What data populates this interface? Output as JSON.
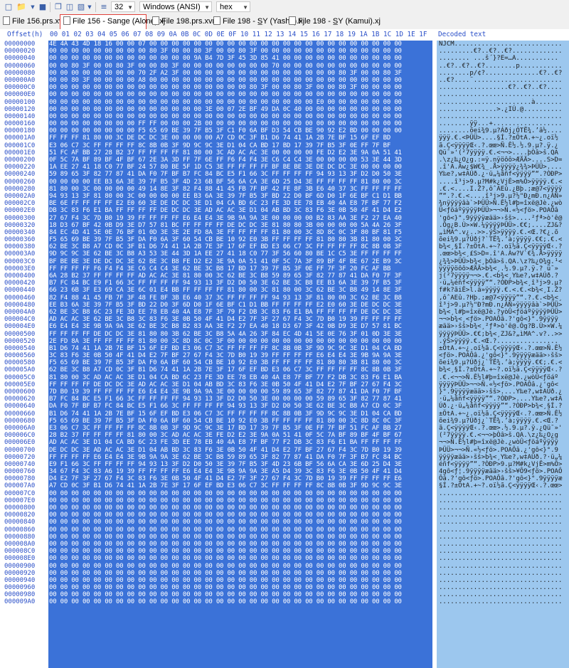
{
  "toolbar": {
    "zoom_value": "32",
    "encoding_value": "Windows (ANSI)",
    "view_value": "hex"
  },
  "tabs": [
    {
      "label": "File 156.prs.xvm",
      "active": false
    },
    {
      "label": "File 156 - Sange (Alone).xj",
      "active": true
    },
    {
      "label": "File 198.prs.xvm",
      "active": false
    },
    {
      "label": "File 198 - S̲Y (Yasha).xj",
      "active": false
    },
    {
      "label": "File 198 - S̲Y (Kamui).xj",
      "active": false
    }
  ],
  "header": {
    "offset_label": "Offset(h)",
    "columns": [
      "00",
      "01",
      "02",
      "03",
      "04",
      "05",
      "06",
      "07",
      "08",
      "09",
      "0A",
      "0B",
      "0C",
      "0D",
      "0E",
      "0F",
      "10",
      "11",
      "12",
      "13",
      "14",
      "15",
      "16",
      "17",
      "18",
      "19",
      "1A",
      "1B",
      "1C",
      "1D",
      "1E",
      "1F"
    ],
    "decoded_label": "Decoded text"
  },
  "rows": [
    {
      "offset": "00000000",
      "hex": "4E 4A 43 4D 18 16 00 00 07 00 00 00 00 00 00 00 00 00 00 00 00 00 00 00 00 00 00 00 00 00 00 00",
      "text": "NJCM............................"
    },
    {
      "offset": "00000020",
      "hex": "00 00 00 00 00 00 00 00 00 80 3F 00 00 80 3F 00 00 80 3F 00 00 00 00 00 00 00 00 00 00 00 00 00",
      "text": ".........€?..€?..€?............."
    },
    {
      "offset": "00000040",
      "hex": "00 00 00 00 00 00 00 00 00 00 00 00 00 9A B4 7D 3F 45 3D 85 41 00 00 00 00 00 00 00 00 00 00 00",
      "text": "........ ...š´}?E=…A..........."
    },
    {
      "offset": "00000060",
      "hom": "",
      "hex": "00 00 80 3F 00 00 80 3F 00 00 80 3F 00 00 00 00 00 00 00 00 70 00 00 00 00 00 00 00 00 00 00 00",
      "text": "..€?..€?..€?........p..........."
    },
    {
      "offset": "00000080",
      "hex": "00 00 00 00 00 00 00 00 70 2F A2 3F 00 00 00 00 00 00 00 00 00 00 00 00 00 00 80 3F 00 00 80 3F",
      "text": "........p/¢?..............€?..€?"
    },
    {
      "offset": "000000A0",
      "hex": "00 00 80 3F 00 00 00 00 A8 00 00 00 00 00 00 00 00 00 00 00 00 00 00 00 00 00 00 00 00 00 00 00",
      "text": "..€?....¨......................."
    },
    {
      "offset": "000000C0",
      "hex": "00 00 00 00 00 00 00 00 00 00 00 00 00 00 00 00 00 00 80 3F 00 00 80 3F 00 00 80 3F 00 00 00 00",
      "text": "..................€?..€?..€?...."
    },
    {
      "offset": "000000E0",
      "hex": "00 00 00 00 00 00 00 00 00 00 00 00 00 00 00 00 00 00 00 00 00 00 00 00 00 00 00 00 00 00 00 00",
      "text": "................................"
    },
    {
      "offset": "00000100",
      "hex": "00 00 00 00 00 00 00 00 00 00 00 00 00 00 00 00 00 00 00 00 00 00 00 00 E0 00 00 00 00 00 00 00",
      "text": "........................à......."
    },
    {
      "offset": "00000120",
      "hex": "00 00 00 00 00 00 00 00 00 00 00 00 00 00 3E 00 07 2E BF 49 DA 0C 40 00 00 00 00 00 00 00 00 00",
      "text": "...............>.¿IÚ.@.........."
    },
    {
      "offset": "00000140",
      "hex": "00 00 00 00 00 00 00 00 00 00 00 00 00 00 00 00 00 00 00 00 00 00 00 00 00 00 00 00 00 00 00 00",
      "text": "................................"
    },
    {
      "offset": "00000160",
      "hex": "00 00 00 00 00 00 00 00 FF FF 00 00 00 2B 00 00 00 00 00 00 00 00 00 00 00 00 00 00 00 00 00 00",
      "text": "........ÿÿ...+.................."
    },
    {
      "offset": "00000180",
      "hex": "00 00 00 00 00 00 00 00 F5 65 69 BE 39 7F B5 3F C1 F0 6A BF D3 54 CB BE 90 92 E2 BD 00 00 00 00",
      "text": "........õei¾9.µ?Áðj¿ÓTË¾.’â½...."
    },
    {
      "offset": "000001A0",
      "hex": "FF FF FF 81 80 00 3C DE DC DC 3E 00 00 00 00 A7 CD 0C 3F B1 D6 74 41 1A 2B 7E BF 15 6F EF BD",
      "text": "ÿÿÿ.€.<ÞÜÜ>....§Í.?±ÖtA.+~¿.oï½"
    },
    {
      "offset": "000001C0",
      "hex": "E3 06 C7 3C FF FF FF FF 8C 8B 0B 3F 9D 9C 9C 3E D1 04 CA BD 17 BD 17 39 7F B5 3F 0E FF 7F BF",
      "text": "ã.Ç<ÿÿÿÿŒ‹.?.œœ>Ñ.Ê½.½.9.µ?.ÿ.¿"
    },
    {
      "offset": "000001E0",
      "hex": "51 FC AF BB 27 28 B2 37 FF FF FF FF 81 80 00 3C AD AC AC 3E 00 00 00 00 FE D2 E2 3E 9A 0A 51 41",
      "text": "Qü¯»'(²7ÿÿÿÿ.€.<­¬¬>....þÒâ>š.QA"
    },
    {
      "offset": "00000200",
      "hex": "0F 5C 7A BF 89 BF 4F BF 67 2E 3A 3D FF 7F 6E FF F6 F4 F4 3E C6 C4 C4 3E 00 00 00 00 53 3E 44 3D",
      "text": ".\\z¿‰¿O¿g.:=ÿ.nÿöôô>ÆÄÄ>....S>D="
    },
    {
      "offset": "00000220",
      "hex": "1A EE 27 41 18 C0 77 BF 24 57 80 BE 5F 1D C5 3E FF FF FF FF BF BE BE 3E DE DC DC 3E 00 00 00 00",
      "text": ".î'A.Àw¿$W€¾_.Å>ÿÿÿÿ¿¾¾>ÞÜÜ>...."
    },
    {
      "offset": "00000240",
      "hex": "59 89 65 3F 82 77 87 41 DA F0 7F BF B7 FC 84 BC E5 F1 66 3C FF FF FF FF 94 93 13 3F D2 D0 50 3E",
      "text": "Y‰e?‚w‡AÚð.¿·ü„¼åñf<ÿÿÿÿ”“.?ÒÐP>"
    },
    {
      "offset": "00000260",
      "hex": "00 00 00 00 EE B3 6A 3E 39 7F B5 3F 4D 23 6B BF 56 6A CA 3E 6D 25 D4 3E FF FF FF FF 81 80 00 3C",
      "text": "....î³j>9.µ?M#k¿VjÊ>m%Ô>ÿÿÿÿ.€.<"
    },
    {
      "offset": "00000280",
      "hex": "81 80 00 3C 00 00 00 00 49 14 8E 3F 82 F4 88 41 45 FB 7F BF 42 FE 8F 3B E6 40 37 3C FF FF FF FF",
      "text": ".€.<....I.Ž?‚ôˆAEû.¿Bþ.;æ@7<ÿÿÿÿ"
    },
    {
      "offset": "000002A0",
      "hex": "94 93 13 3F 81 80 00 3C 00 00 00 00 EE B3 6A 3E 39 7F B5 3F BD 22 D0 BF 6D D0 1F 6E BF C1 D1 BB",
      "text": "”“.?.€.<....î³j>9.µ?½\"Ð¿mÐ.n¿ÁÑ»"
    },
    {
      "offset": "000002C0",
      "hex": "BE 6E FF FF FF FF E2 E0 60 3E DE DC DC 3E D1 04 CA BD 6C 23 FE 3D EE 78 EB 40 4A E8 7F BF 77 F2",
      "text": "¾nÿÿÿÿâà`>ÞÜÜ>Ñ.Ê½l#þ=îxë@Jè.¿wò"
    },
    {
      "offset": "000002E0",
      "hex": "DB 3C 83 F6 E1 BA FF FF FF FF DE DC DC 3E AD AC AC 3E D1 04 AB BD 3C 83 F6 3E 0B 50 4F 41 D4 E2",
      "text": "Û<ƒöáºÿÿÿÿÞÜÜ>­¬¬>Ñ.«½<ƒö>.POAÔâ"
    },
    {
      "offset": "00000300",
      "hex": "27 67 F4 3C 7D B0 19 39 FF FF FF FF E6 E4 E4 3E 9B 9A 9A 3E 00 00 00 00 B2 83 AA 3E F2 27 EA 40",
      "text": "'gô<}°.9ÿÿÿÿæää>›šš>....²ƒª>ò'ê@"
    },
    {
      "offset": "00000320",
      "hex": "18 D3 67 BF 42 0B D9 3E D7 57 81 BC FF FF FF FF DE DC DC 3E 81 80 80 3B 00 00 00 00 5A 4A 26 3F",
      "text": ".Óg¿B.Ù>×W.¼ÿÿÿÿÞÜÜ>.€€;....ZJ&?"
    },
    {
      "offset": "00000340",
      "hex": "84 EC 4D 41 5E 0E 76 BF 01 0D 3E 3E 2E FD 8A 3E FF FF FF FF 81 80 00 3C 8D 8C 0C 3F 80 BF 81 F5",
      "text": "„ìMA^.v¿..>>.ýŠ>ÿÿÿÿ.€.<Œ.?€¿.õ"
    },
    {
      "offset": "00000360",
      "hex": "F5 65 69 BE 39 7F B5 3F DA F0 6A 3F 60 54 CB BE 10 92 E0 3B FF FF FF FF 81 80 80 3B 81 80 00 3C",
      "text": "õei¾9.µ?Úðj?`TË¾.’à;ÿÿÿÿ.€€;.€.<"
    },
    {
      "offset": "00000380",
      "hex": "62 BE 3C B8 A7 CD 0C 3F B1 D6 74 41 1A 2B 7E 3F 17 6F EF BD E3 06 C7 3C FF FF FF FF 8C 8B 0B 3F",
      "text": "b¾<¸§Í.?±ÖtA.+~?.oï½ã.Ç<ÿÿÿÿŒ‹.?"
    },
    {
      "offset": "000003A0",
      "hex": "9D 9C 9C 3E 62 BE 3C B8 A3 53 3E 44 3D 1A EE 27 41 18 C0 77 3F 56 60 80 BE 1C C5 3E FF FF FF FF",
      "text": ".œœ>b¾<¸£S>D=.î'A.Àw?V`€¾.Å>ÿÿÿÿ"
    },
    {
      "offset": "000003C0",
      "hex": "BF BE BE 3E DE DC DC 3E 62 BE 3C B8 FE D2 E2 3E 9A 0A 51 41 0F 5C 7A 3F 89 BF 4F BE 67 2E B9 3C",
      "text": "¿¾¾>ÞÜÜ>b¾<¸þÒâ>š.QA.\\z?‰¿O¾g.¹<"
    },
    {
      "offset": "000003E0",
      "hex": "FF FF FF FF F6 F4 F4 3E C6 C4 C4 3E 62 BE 3C B8 17 BD 17 39 7F B5 3F 0E FF 7F 3F 20 FC AF BB",
      "text": "ÿÿÿÿöôô>ÆÄÄ>b¾<¸.½.9.µ?.ÿ.? ü¯»"
    },
    {
      "offset": "00000400",
      "hex": "6A 28 B2 37 FF FF FF FF AD AC AC 3E 81 80 00 3C 62 BE 3C B8 59 89 65 3F 82 77 87 41 DA F0 7F 3F",
      "text": "j(²7ÿÿÿÿ­¬¬>.€.<b¾<¸Y‰e?‚w‡AÚð.?"
    },
    {
      "offset": "00000420",
      "hex": "B7 FC 84 BC E9 F1 66 3C FF FF FF FF 94 93 13 3F D2 D0 50 3E 62 BE 3C B8 EE B3 6A 3E 39 7F B5 3F",
      "text": "·ü„¼éñf<ÿÿÿÿ”“.?ÒÐP>b¾<¸î³j>9.µ?"
    },
    {
      "offset": "00000440",
      "hex": "66 23 6B 3F E3 69 CA 3E 6C 01 E4 BB FF FF FF FF 81 80 00 3C 81 80 00 3C 62 BE 3C B8 49 14 8E 3F",
      "text": "f#k?ãiÊ>l.ä»ÿÿÿÿ.€.<.€.<b¾<¸I.Ž?"
    },
    {
      "offset": "00000460",
      "hex": "82 F4 88 41 45 FB 7F 3F 48 FE 8F 3B E6 40 37 3C FF FF FF FF 94 93 13 3F 81 80 00 3C 62 BE 3C B8",
      "text": "‚ôˆAEû.?Hþ.;æ@7<ÿÿÿÿ”“.?.€.<b¾<¸"
    },
    {
      "offset": "00000480",
      "hex": "EE B3 6A 3E 39 7F B5 3F BD 22 D0 3F 6D D0 1F 6E BF C1 D1 BB FF FF FF FF E2 E0 60 3E DE DC DC 3E",
      "text": "î³j>9.µ?½\"Ð?mÐ.n¿ÁÑ»ÿÿÿÿâà`>ÞÜÜ>"
    },
    {
      "offset": "000004A0",
      "hex": "62 BE 3C B8 6C 23 FE 3D EE 78 EB 40 4A E8 7F 3F 79 F2 DB 3C 83 F6 E1 BA FF FF FF FF DE DC DC 3E",
      "text": "b¾<¸l#þ=îxë@Jè.?yòÛ<ƒöáºÿÿÿÿÞÜÜ>"
    },
    {
      "offset": "000004C0",
      "hex": "AD AC AC 3E 62 BE 3C B8 3C 83 F6 3E 0B 50 4F 41 D4 E2 7F 3F 27 67 F4 3C 7D B0 19 39 FF FF FF FF",
      "text": "­¬¬>b¾<¸<ƒö>.POAÔâ.?'gô<}°.9ÿÿÿÿ"
    },
    {
      "offset": "000004E0",
      "hex": "E6 E4 E4 3E 9B 9A 9A 3E 62 BE 3C B8 B2 83 AA 3E F2 27 EA 40 18 D3 67 3F 42 0B D9 3E D7 57 81 BC",
      "text": "æää>›šš>b¾<¸²ƒª>ò'ê@.Óg?B.Ù>×W.¼"
    },
    {
      "offset": "00000500",
      "hex": "FF FF FF FF DE DC DC 3E 81 80 80 3B 62 BE 3C B8 5A 4A 26 3F 84 EC 4D 41 5E 0E 76 3F 01 0D 3E 3E",
      "text": "ÿÿÿÿÞÜÜ>.€€;b¾<¸ZJ&?„ìMA^.v?..>>"
    },
    {
      "offset": "00000520",
      "hex": "2E FD 8A 3E FF FF FF FF 81 80 00 3C 8D 8C 0C 3F 00 00 00 00 00 00 00 00 00 00 00 00 00 00 00 00",
      "text": ".ýŠ>ÿÿÿÿ.€.<Œ.?................"
    },
    {
      "offset": "00000540",
      "hex": "B1 D6 74 41 1A 2B 7E BF 15 6F EF BD E3 06 C7 3C FF FF FF FF 8C 8B 0B 3F 9D 9C 9C 3E D1 04 CA BD",
      "text": "±ÖtA.+~¿.oï½ã.Ç<ÿÿÿÿŒ‹.?.œœ>Ñ.Ê½"
    },
    {
      "offset": "00000560",
      "hex": "3C 83 F6 3E 0B 50 4F 41 D4 E2 7F BF 27 67 F4 3C 7D B0 19 39 FF FF FF FF E6 E4 E4 3E 9B 9A 9A 3E",
      "text": "<ƒö>.POAÔâ.¿'gô<}°.9ÿÿÿÿæää>›šš>"
    },
    {
      "offset": "00000580",
      "hex": "F5 65 69 BE 39 7F B5 3F DA F0 6A BF 60 54 CB BE 10 92 E0 3B FF FF FF FF 81 80 80 3B 81 80 00 3C",
      "text": "õei¾9.µ?Úðj¿`TË¾.’à;ÿÿÿÿ.€€;.€.<"
    },
    {
      "offset": "000005A0",
      "hex": "62 BE 3C B8 A7 CD 0C 3F B1 D6 74 41 1A 2B 7E 3F 17 6F EF BD E3 06 C7 3C FF FF FF FF 8C 8B 0B 3F",
      "text": "b¾<¸§Í.?±ÖtA.+~?.oï½ã.Ç<ÿÿÿÿŒ‹.?"
    },
    {
      "offset": "000005C0",
      "hex": "81 80 00 3C AD AC AC 3E D1 04 CA BD 6C 23 FE 3D EE 78 EB 40 4A E8 7F BF 77 F2 DB 3C 83 F6 E1 BA",
      "text": ".€.<­¬¬>Ñ.Ê½l#þ=îxë@Jè.¿wòÛ<ƒöáº"
    },
    {
      "offset": "000005E0",
      "hex": "FF FF FF FF DE DC DC 3E AD AC AC 3E D1 04 AB BD 3C 83 F6 3E 0B 50 4F 41 D4 E2 7F BF 27 67 F4 3C",
      "text": "ÿÿÿÿÞÜÜ>­¬¬>Ñ.«½<ƒö>.POAÔâ.¿'gô<"
    },
    {
      "offset": "00000600",
      "hex": "7D B0 19 39 FF FF FF FF E6 E4 E4 3E 9B 9A 9A 3E 00 00 00 00 59 89 65 3F 82 77 87 41 DA F0 7F BF",
      "text": "}°.9ÿÿÿÿæää>›šš>....Y‰e?‚w‡AÚð.¿"
    },
    {
      "offset": "00000620",
      "hex": "B7 FC 84 BC E5 F1 66 3C FF FF FF FF 94 93 13 3F D2 D0 50 3E 00 00 00 00 59 89 65 3F 82 77 87 41",
      "text": "·ü„¼åñf<ÿÿÿÿ”“.?ÒÐP>....Y‰e?‚w‡A"
    },
    {
      "offset": "00000640",
      "hex": "DA F0 7F BF B7 FC 84 BC E5 F1 66 3C FF FF FF FF 94 93 13 3F D2 D0 50 3E 62 BE 3C B8 A7 CD 0C 3F",
      "text": "Úð.¿·ü„¼åñf<ÿÿÿÿ”“.?ÒÐP>b¾<¸§Í.?"
    },
    {
      "offset": "00000660",
      "hex": "B1 D6 74 41 1A 2B 7E BF 15 6F EF BD E3 06 C7 3C FF FF FF FF 8C 8B 0B 3F 9D 9C 9C 3E D1 04 CA BD",
      "text": "±ÖtA.+~¿.oï½ã.Ç<ÿÿÿÿŒ‹.?.œœ>Ñ.Ê½"
    },
    {
      "offset": "00000680",
      "hex": "F5 65 69 BE 39 7F B5 3F DA F0 6A BF 60 54 CB BE 10 92 E0 3B FF FF FF FF 81 80 00 3C 8D 8C 0C 3F",
      "text": "õei¾9.µ?Úðj¿`TË¾.’à;ÿÿÿÿ.€.<Œ.?"
    },
    {
      "offset": "000006A0",
      "hex": "E3 06 C7 3C FF FF FF FF 8C 8B 0B 3F 9D 9C 9C 3E 17 BD 17 39 7F B5 3F 0E FF 7F BF 51 FC AF BB 27",
      "text": "ã.Ç<ÿÿÿÿŒ‹.?.œœ>.½.9.µ?.ÿ.¿Qü¯»'"
    },
    {
      "offset": "000006C0",
      "hex": "28 B2 37 FF FF FF FF 81 80 00 3C AD AC AC 3E FE D2 E2 3E 9A 0A 51 41 0F 5C 7A BF 89 BF 4F BF 67",
      "text": "(²7ÿÿÿÿ.€.<­¬¬>þÒâ>š.QA.\\z¿‰¿O¿g"
    },
    {
      "offset": "000006E0",
      "hex": "AD AC AC 3E D1 04 CA BD 6C 23 FE 3D EE 78 EB 40 4A E8 7F BF 77 F2 DB 3C 83 F6 E1 BA FF FF FF FF",
      "text": "­¬¬>Ñ.Ê½l#þ=îxë@Jè.¿wòÛ<ƒöáºÿÿÿÿ"
    },
    {
      "offset": "00000700",
      "hex": "DE DC DC 3E AD AC AC 3E D1 04 AB BD 3C 83 F6 3E 0B 50 4F 41 D4 E2 7F BF 27 67 F4 3C 7D B0 19 39",
      "text": "ÞÜÜ>­¬¬>Ñ.«½<ƒö>.POAÔâ.¿'gô<}°.9"
    },
    {
      "offset": "00000720",
      "hex": "FF FF FF FF E6 E4 E4 3E 9B 9A 9A 3E 62 BE 3C B8 59 89 65 3F 82 77 87 41 DA F0 7F 3F B7 FC 84 BC",
      "text": "ÿÿÿÿæää>›šš>b¾<¸Y‰e?‚w‡AÚð.?·ü„¼"
    },
    {
      "offset": "00000740",
      "hex": "E9 F1 66 3C FF FF FF FF 94 93 13 3F D2 D0 50 3E 39 7F B5 3F 4D 23 6B BF 56 6A CA 3E 6D 25 D4 3E",
      "text": "éñf<ÿÿÿÿ”“.?ÒÐP>9.µ?M#k¿VjÊ>m%Ô>"
    },
    {
      "offset": "00000760",
      "hex": "34 67 F4 3C 83 A6 19 39 FF FF FF FF E6 E4 E4 3E 9B 9A 9A 3E A5 D4 39 3C 83 F6 3E 0B 50 4F 41 D4",
      "text": "4gô<ƒ¦.9ÿÿÿÿæää>›šš>¥Ô9<ƒö>.POAÔ"
    },
    {
      "offset": "00000780",
      "hex": "D4 E2 7F 3F 27 67 F4 3C 83 F6 3E 0B 50 4F 41 D4 E2 7F 3F 27 67 F4 3C 7D B0 19 39 FF FF FF FF E6",
      "text": "Ôâ.?'gô<ƒö>.POAÔâ.?'gô<}°.9ÿÿÿÿæ"
    },
    {
      "offset": "000007A0",
      "hex": "A7 CD 0C 3F B1 D6 74 41 1A 2B 7E 3F 17 6F EF BD E3 06 C7 3C FF FF FF FF 8C 8B 0B 3F 9D 9C 9C 3E",
      "text": "§Í.?±ÖtA.+~?.oï½ã.Ç<ÿÿÿÿŒ‹.?.œœ>"
    },
    {
      "offset": "000007C0",
      "hex": "00 00 00 00 00 00 00 00 00 00 00 00 00 00 00 00 00 00 00 00 00 00 00 00 00 00 00 00 00 00 00 00",
      "text": "................................"
    },
    {
      "offset": "000007E0",
      "hex": "00 00 00 00 00 00 00 00 00 00 00 00 00 00 00 00 00 00 00 00 00 00 00 00 00 00 00 00 00 00 00 00",
      "text": "................................"
    },
    {
      "offset": "00000800",
      "hex": "00 00 00 00 00 00 00 00 00 00 00 00 00 00 00 00 00 00 00 00 00 00 00 00 00 00 00 00 00 00 00 00",
      "text": "................................"
    },
    {
      "offset": "00000820",
      "hex": "00 00 00 00 00 00 00 00 00 00 00 00 00 00 00 00 00 00 00 00 00 00 00 00 00 00 00 00 00 00 00 00",
      "text": "................................"
    },
    {
      "offset": "00000840",
      "hex": "00 00 00 00 00 00 00 00 00 00 00 00 00 00 00 00 00 00 00 00 00 00 00 00 00 00 00 00 00 00 00 00",
      "text": "................................"
    },
    {
      "offset": "00000860",
      "hex": "00 00 00 00 00 00 00 00 00 00 00 00 00 00 00 00 00 00 00 00 00 00 00 00 00 00 00 00 00 00 00 00",
      "text": "................................"
    },
    {
      "offset": "00000880",
      "hex": "00 00 00 00 00 00 00 00 00 00 00 00 00 00 00 00 00 00 00 00 00 00 00 00 00 00 00 00 00 00 00 00",
      "text": "................................"
    },
    {
      "offset": "000008A0",
      "hex": "00 00 00 00 00 00 00 00 00 00 00 00 00 00 00 00 00 00 00 00 00 00 00 00 00 00 00 00 00 00 00 00",
      "text": "................................"
    },
    {
      "offset": "000008C0",
      "hex": "00 00 00 00 00 00 00 00 00 00 00 00 00 00 00 00 00 00 00 00 00 00 00 00 00 00 00 00 00 00 00 00",
      "text": "................................"
    },
    {
      "offset": "000008E0",
      "hex": "00 00 00 00 00 00 00 00 00 00 00 00 00 00 00 00 00 00 00 00 00 00 00 00 00 00 00 00 00 00 00 00",
      "text": "................................"
    },
    {
      "offset": "00000900",
      "hex": "00 00 00 00 00 00 00 00 00 00 00 00 00 00 00 00 00 00 00 00 00 00 00 00 00 00 00 00 00 00 00 00",
      "text": "................................"
    },
    {
      "offset": "00000920",
      "hex": "00 00 00 00 00 00 00 00 00 00 00 00 00 00 00 00 00 00 00 00 00 00 00 00 00 00 00 00 00 00 00 00",
      "text": "................................"
    },
    {
      "offset": "00000940",
      "hex": "00 00 00 00 00 00 00 00 00 00 00 00 00 00 00 00 00 00 00 00 00 00 00 00 00 00 00 00 00 00 00 00",
      "text": "................................"
    },
    {
      "offset": "00000960",
      "hex": "00 00 00 00 00 00 00 00 00 00 00 00 00 00 00 00 00 00 00 00 00 00 00 00 00 00 00 00 00 00 00 00",
      "text": "................................"
    },
    {
      "offset": "00000980",
      "hex": "00 00 00 00 00 00 00 00 00 00 00 00 00 00 00 00 00 00 00 00 00 00 00 00 00 00 00 00 00 00 00 00",
      "text": "................................"
    },
    {
      "offset": "000009A0",
      "hex": "00 00 00 00 00 00 00 00 00 00 00 00 00 00 00 00 00 00 00 00 00 00 00 00 00 00 00 00 00 00 00 00",
      "text": "................................"
    }
  ]
}
